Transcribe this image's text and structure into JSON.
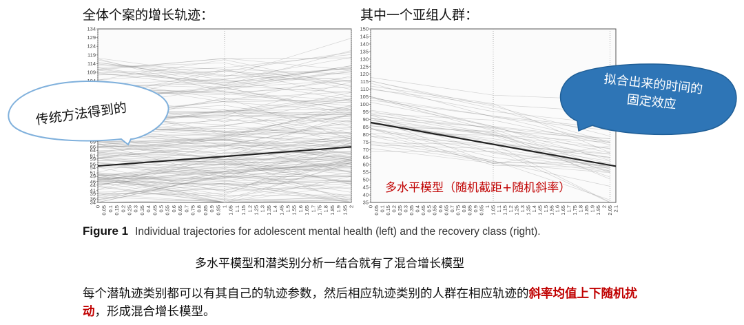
{
  "headers": {
    "left_title": "全体个案的增长轨迹：",
    "right_title": "其中一个亚组人群："
  },
  "annotations": {
    "traditional": "传统方法得到的",
    "fixed_effect_line1": "拟合出来的时间的",
    "fixed_effect_line2": "固定效应",
    "multilevel_model": "多水平模型（随机截距+随机斜率）"
  },
  "figure": {
    "label": "Figure 1",
    "caption": "Individual trajectories for adolescent mental health (left) and the recovery class (right)."
  },
  "conclusion": "多水平模型和潜类别分析一结合就有了混合增长模型",
  "description": {
    "part1": "每个潜轨迹类别都可以有其自己的轨迹参数，然后相应轨迹类别的人群在相应轨迹的",
    "highlight": "斜率均值上下随机扰动",
    "part2": "，形成混合增长模型。"
  },
  "colors": {
    "accent_red": "#c00000",
    "bubble_blue": "#2e75b6",
    "bubble_outline": "#7fb0dc"
  },
  "chart_data": [
    {
      "type": "line",
      "title": "",
      "y_ticks": [
        34,
        36,
        39,
        41,
        44,
        46,
        49,
        51,
        54,
        56,
        59,
        61,
        64,
        66,
        69,
        71,
        74,
        76,
        79,
        81,
        84,
        86,
        89,
        91,
        94,
        96,
        99,
        101,
        104,
        109,
        114,
        119,
        124,
        129,
        134
      ],
      "x_ticks": [
        "0",
        "0.05",
        "0.1",
        "0.15",
        "0.2",
        "0.25",
        "0.3",
        "0.35",
        "0.4",
        "0.45",
        "0.5",
        "0.55",
        "0.6",
        "0.65",
        "0.7",
        "0.75",
        "0.8",
        "0.85",
        "0.9",
        "0.95",
        "1",
        "1.05",
        "1.1",
        "1.15",
        "1.2",
        "1.25",
        "1.3",
        "1.35",
        "1.4",
        "1.45",
        "1.5",
        "1.55",
        "1.6",
        "1.65",
        "1.7",
        "1.75",
        "1.8",
        "1.85",
        "1.9",
        "1.95",
        "2"
      ],
      "ylim": [
        34,
        134
      ],
      "xlim": [
        0,
        2
      ],
      "fixed_effect": [
        {
          "x": 0,
          "y": 55
        },
        {
          "x": 2,
          "y": 66
        }
      ]
    },
    {
      "type": "line",
      "title": "",
      "y_ticks": [
        35,
        40,
        45,
        50,
        55,
        60,
        65,
        70,
        75,
        80,
        85,
        90,
        95,
        100,
        105,
        110,
        115,
        120,
        125,
        130,
        135,
        140,
        145,
        150
      ],
      "x_ticks": [
        "0",
        "0.05",
        "0.1",
        "0.15",
        "0.2",
        "0.25",
        "0.3",
        "0.35",
        "0.4",
        "0.45",
        "0.5",
        "0.55",
        "0.6",
        "0.65",
        "0.7",
        "0.75",
        "0.8",
        "0.85",
        "0.9",
        "0.95",
        "1",
        "1.05",
        "1.1",
        "1.15",
        "1.2",
        "1.25",
        "1.3",
        "1.35",
        "1.4",
        "1.45",
        "1.5",
        "1.55",
        "1.6",
        "1.65",
        "1.7",
        "1.75",
        "1.8",
        "1.85",
        "1.9",
        "1.95",
        "2",
        "2.05",
        "2.1"
      ],
      "ylim": [
        35,
        150
      ],
      "xlim": [
        0,
        2.1
      ],
      "fixed_effect": [
        {
          "x": 0,
          "y": 88
        },
        {
          "x": 2.1,
          "y": 59
        }
      ]
    }
  ]
}
